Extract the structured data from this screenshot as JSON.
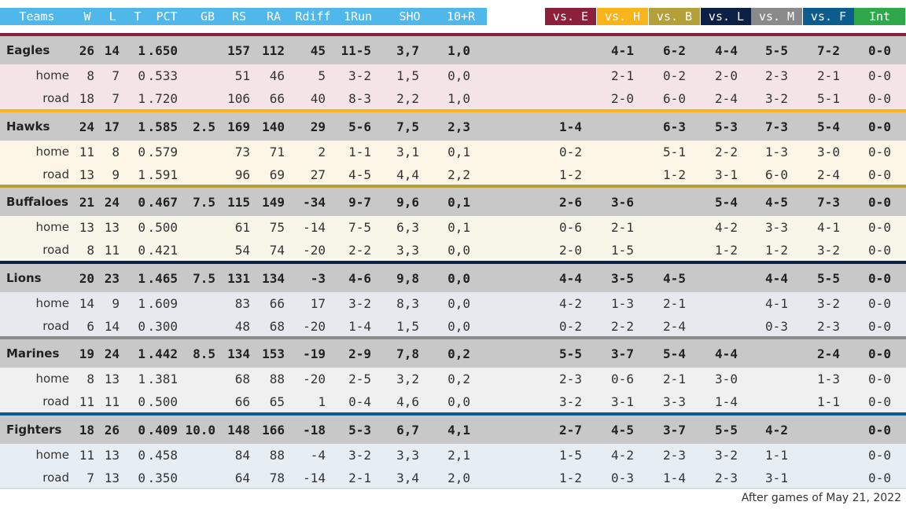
{
  "header": {
    "columns": [
      "Teams",
      "W",
      "L",
      "T",
      "PCT",
      "GB",
      "RS",
      "RA",
      "Rdiff",
      "1Run",
      "SHO",
      "10+R"
    ],
    "vs": [
      {
        "label": "vs. E",
        "color": "#8c1f3a",
        "text_color": "#ffffff"
      },
      {
        "label": "vs. H",
        "color": "#f9b31b",
        "text_color": "#ffffff"
      },
      {
        "label": "vs. B",
        "color": "#b3a039",
        "text_color": "#ffffff"
      },
      {
        "label": "vs. L",
        "color": "#0c1f45",
        "text_color": "#ffffff"
      },
      {
        "label": "vs. M",
        "color": "#8a8a8a",
        "text_color": "#ffffff"
      },
      {
        "label": "vs. F",
        "color": "#0c5d8d",
        "text_color": "#ffffff"
      },
      {
        "label": "Int",
        "color": "#2ea84a",
        "text_color": "#ffffff"
      }
    ]
  },
  "teams": [
    {
      "name": "Eagles",
      "accent": "#8c1f3a",
      "sub_bg": "#f4e4e8",
      "main": {
        "W": "26",
        "L": "14",
        "T": "1",
        "PCT": ".650",
        "GB": "",
        "RS": "157",
        "RA": "112",
        "Rdiff": "45",
        "OneRun": "11-5",
        "SHO": "3,7",
        "TenR": "1,0",
        "vs": [
          "",
          "4-1",
          "6-2",
          "4-4",
          "5-5",
          "7-2",
          "0-0"
        ]
      },
      "splits": [
        {
          "label": "home",
          "W": "8",
          "L": "7",
          "T": "0",
          "PCT": ".533",
          "RS": "51",
          "RA": "46",
          "Rdiff": "5",
          "OneRun": "3-2",
          "SHO": "1,5",
          "TenR": "0,0",
          "vs": [
            "",
            "2-1",
            "0-2",
            "2-0",
            "2-3",
            "2-1",
            "0-0"
          ]
        },
        {
          "label": "road",
          "W": "18",
          "L": "7",
          "T": "1",
          "PCT": ".720",
          "RS": "106",
          "RA": "66",
          "Rdiff": "40",
          "OneRun": "8-3",
          "SHO": "2,2",
          "TenR": "1,0",
          "vs": [
            "",
            "2-0",
            "6-0",
            "2-4",
            "3-2",
            "5-1",
            "0-0"
          ]
        }
      ]
    },
    {
      "name": "Hawks",
      "accent": "#f9b31b",
      "sub_bg": "#fdf6e6",
      "main": {
        "W": "24",
        "L": "17",
        "T": "1",
        "PCT": ".585",
        "GB": "2.5",
        "RS": "169",
        "RA": "140",
        "Rdiff": "29",
        "OneRun": "5-6",
        "SHO": "7,5",
        "TenR": "2,3",
        "vs": [
          "1-4",
          "",
          "6-3",
          "5-3",
          "7-3",
          "5-4",
          "0-0"
        ]
      },
      "splits": [
        {
          "label": "home",
          "W": "11",
          "L": "8",
          "T": "0",
          "PCT": ".579",
          "RS": "73",
          "RA": "71",
          "Rdiff": "2",
          "OneRun": "1-1",
          "SHO": "3,1",
          "TenR": "0,1",
          "vs": [
            "0-2",
            "",
            "5-1",
            "2-2",
            "1-3",
            "3-0",
            "0-0"
          ]
        },
        {
          "label": "road",
          "W": "13",
          "L": "9",
          "T": "1",
          "PCT": ".591",
          "RS": "96",
          "RA": "69",
          "Rdiff": "27",
          "OneRun": "4-5",
          "SHO": "4,4",
          "TenR": "2,2",
          "vs": [
            "1-2",
            "",
            "1-2",
            "3-1",
            "6-0",
            "2-4",
            "0-0"
          ]
        }
      ]
    },
    {
      "name": "Buffaloes",
      "accent": "#b3a039",
      "sub_bg": "#f8f5e9",
      "main": {
        "W": "21",
        "L": "24",
        "T": "0",
        "PCT": ".467",
        "GB": "7.5",
        "RS": "115",
        "RA": "149",
        "Rdiff": "-34",
        "OneRun": "9-7",
        "SHO": "9,6",
        "TenR": "0,1",
        "vs": [
          "2-6",
          "3-6",
          "",
          "5-4",
          "4-5",
          "7-3",
          "0-0"
        ]
      },
      "splits": [
        {
          "label": "home",
          "W": "13",
          "L": "13",
          "T": "0",
          "PCT": ".500",
          "RS": "61",
          "RA": "75",
          "Rdiff": "-14",
          "OneRun": "7-5",
          "SHO": "6,3",
          "TenR": "0,1",
          "vs": [
            "0-6",
            "2-1",
            "",
            "4-2",
            "3-3",
            "4-1",
            "0-0"
          ]
        },
        {
          "label": "road",
          "W": "8",
          "L": "11",
          "T": "0",
          "PCT": ".421",
          "RS": "54",
          "RA": "74",
          "Rdiff": "-20",
          "OneRun": "2-2",
          "SHO": "3,3",
          "TenR": "0,0",
          "vs": [
            "2-0",
            "1-5",
            "",
            "1-2",
            "1-2",
            "3-2",
            "0-0"
          ]
        }
      ]
    },
    {
      "name": "Lions",
      "accent": "#0c1f45",
      "sub_bg": "#e7e9ef",
      "main": {
        "W": "20",
        "L": "23",
        "T": "1",
        "PCT": ".465",
        "GB": "7.5",
        "RS": "131",
        "RA": "134",
        "Rdiff": "-3",
        "OneRun": "4-6",
        "SHO": "9,8",
        "TenR": "0,0",
        "vs": [
          "4-4",
          "3-5",
          "4-5",
          "",
          "4-4",
          "5-5",
          "0-0"
        ]
      },
      "splits": [
        {
          "label": "home",
          "W": "14",
          "L": "9",
          "T": "1",
          "PCT": ".609",
          "RS": "83",
          "RA": "66",
          "Rdiff": "17",
          "OneRun": "3-2",
          "SHO": "8,3",
          "TenR": "0,0",
          "vs": [
            "4-2",
            "1-3",
            "2-1",
            "",
            "4-1",
            "3-2",
            "0-0"
          ]
        },
        {
          "label": "road",
          "W": "6",
          "L": "14",
          "T": "0",
          "PCT": ".300",
          "RS": "48",
          "RA": "68",
          "Rdiff": "-20",
          "OneRun": "1-4",
          "SHO": "1,5",
          "TenR": "0,0",
          "vs": [
            "0-2",
            "2-2",
            "2-4",
            "",
            "0-3",
            "2-3",
            "0-0"
          ]
        }
      ]
    },
    {
      "name": "Marines",
      "accent": "#8a8a8a",
      "sub_bg": "#f0f0f0",
      "main": {
        "W": "19",
        "L": "24",
        "T": "1",
        "PCT": ".442",
        "GB": "8.5",
        "RS": "134",
        "RA": "153",
        "Rdiff": "-19",
        "OneRun": "2-9",
        "SHO": "7,8",
        "TenR": "0,2",
        "vs": [
          "5-5",
          "3-7",
          "5-4",
          "4-4",
          "",
          "2-4",
          "0-0"
        ]
      },
      "splits": [
        {
          "label": "home",
          "W": "8",
          "L": "13",
          "T": "1",
          "PCT": ".381",
          "RS": "68",
          "RA": "88",
          "Rdiff": "-20",
          "OneRun": "2-5",
          "SHO": "3,2",
          "TenR": "0,2",
          "vs": [
            "2-3",
            "0-6",
            "2-1",
            "3-0",
            "",
            "1-3",
            "0-0"
          ]
        },
        {
          "label": "road",
          "W": "11",
          "L": "11",
          "T": "0",
          "PCT": ".500",
          "RS": "66",
          "RA": "65",
          "Rdiff": "1",
          "OneRun": "0-4",
          "SHO": "4,6",
          "TenR": "0,0",
          "vs": [
            "3-2",
            "3-1",
            "3-3",
            "1-4",
            "",
            "1-1",
            "0-0"
          ]
        }
      ]
    },
    {
      "name": "Fighters",
      "accent": "#0c5d8d",
      "sub_bg": "#e6eef4",
      "main": {
        "W": "18",
        "L": "26",
        "T": "0",
        "PCT": ".409",
        "GB": "10.0",
        "RS": "148",
        "RA": "166",
        "Rdiff": "-18",
        "OneRun": "5-3",
        "SHO": "6,7",
        "TenR": "4,1",
        "vs": [
          "2-7",
          "4-5",
          "3-7",
          "5-5",
          "4-2",
          "",
          "0-0"
        ]
      },
      "splits": [
        {
          "label": "home",
          "W": "11",
          "L": "13",
          "T": "0",
          "PCT": ".458",
          "RS": "84",
          "RA": "88",
          "Rdiff": "-4",
          "OneRun": "3-2",
          "SHO": "3,3",
          "TenR": "2,1",
          "vs": [
            "1-5",
            "4-2",
            "2-3",
            "3-2",
            "1-1",
            "",
            "0-0"
          ]
        },
        {
          "label": "road",
          "W": "7",
          "L": "13",
          "T": "0",
          "PCT": ".350",
          "RS": "64",
          "RA": "78",
          "Rdiff": "-14",
          "OneRun": "2-1",
          "SHO": "3,4",
          "TenR": "2,0",
          "vs": [
            "1-2",
            "0-3",
            "1-4",
            "2-3",
            "3-1",
            "",
            "0-0"
          ]
        }
      ]
    }
  ],
  "footer": {
    "note": "After games of May 21, 2022"
  }
}
